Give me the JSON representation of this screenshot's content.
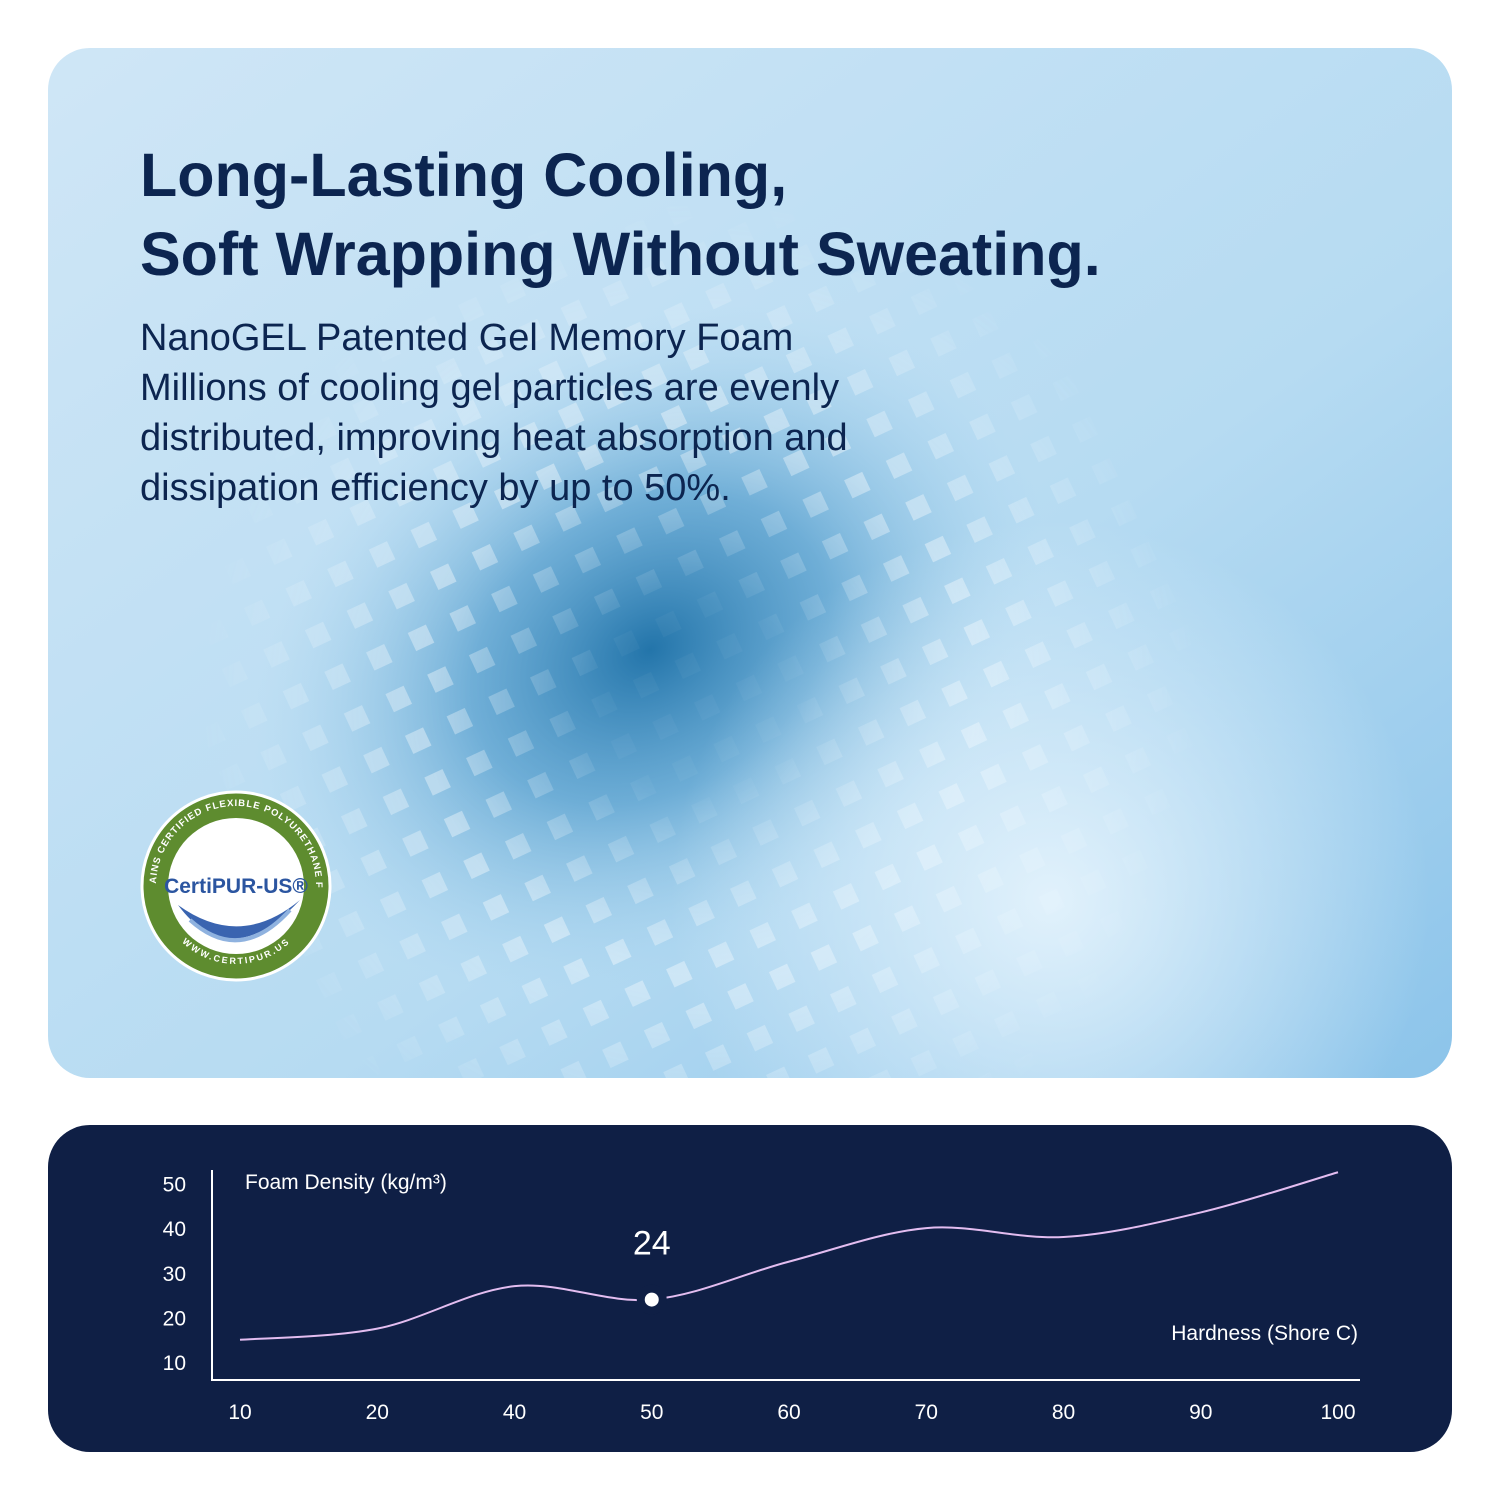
{
  "header": {
    "title": [
      "Long-Lasting Cooling,",
      "Soft Wrapping Without Sweating."
    ],
    "body": [
      "NanoGEL Patented Gel Memory Foam",
      "Millions of cooling gel particles are evenly",
      "distributed, improving heat absorption and",
      "dissipation efficiency by up to 50%."
    ]
  },
  "badge": {
    "brand": "CertiPUR-US®",
    "ring_text": "CONTAINS CERTIFIED FLEXIBLE POLYURETHANE FOAM",
    "url": "WWW.CERTIPUR.US"
  },
  "chart_data": {
    "type": "line",
    "y_label": "Foam Density (kg/m³)",
    "x_label": "Hardness (Shore C)",
    "categories": [
      "10",
      "20",
      "40",
      "50",
      "60",
      "70",
      "80",
      "90",
      "100"
    ],
    "values": [
      15,
      17.5,
      27,
      24,
      32.5,
      40,
      38,
      43.5,
      52.5
    ],
    "value_labels": [
      null,
      null,
      null,
      "24",
      null,
      null,
      null,
      null,
      null
    ],
    "color": "#e3bdf0",
    "ylim": [
      6,
      53
    ],
    "yticks": [
      10,
      20,
      30,
      40,
      50
    ],
    "grid": false
  }
}
